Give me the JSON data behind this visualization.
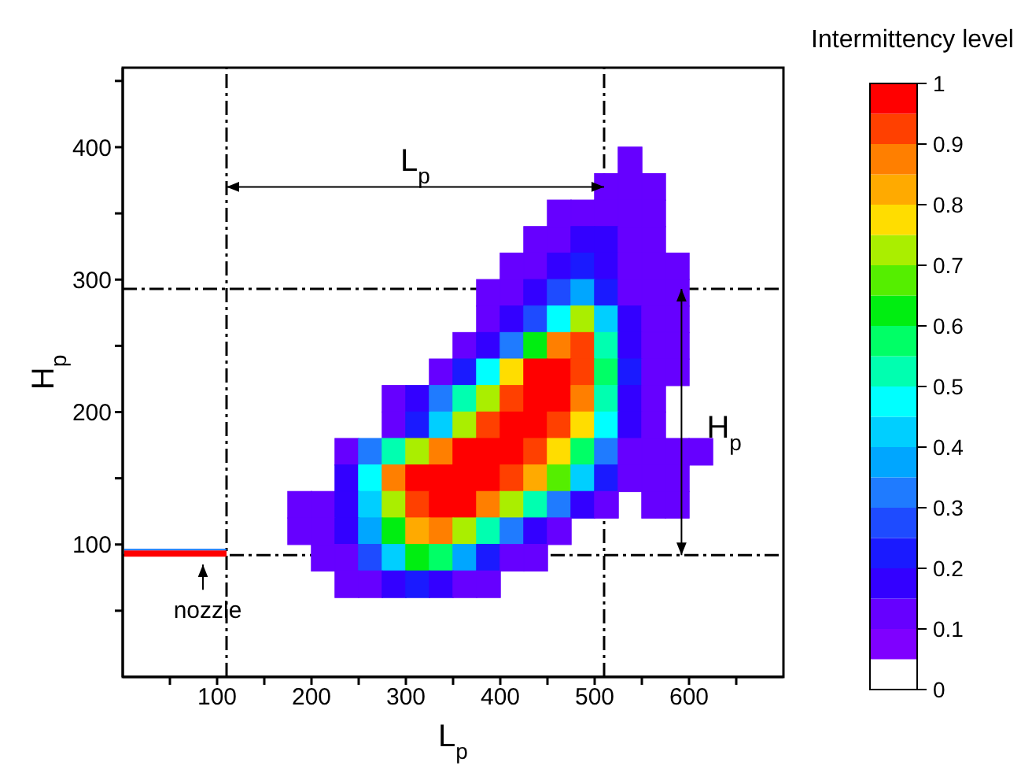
{
  "chart_data": {
    "type": "scatter",
    "marker": "square",
    "xlabel": "L$_{p}$",
    "ylabel": "H$_{p}$",
    "clabel": "Intermittency level",
    "xlim": [
      0,
      700
    ],
    "xticks": [
      {
        "value": 50,
        "label": null
      },
      100,
      {
        "value": 150,
        "label": null
      },
      200,
      {
        "value": 250,
        "label": null
      },
      300,
      {
        "value": 350,
        "label": null
      },
      400,
      {
        "value": 450,
        "label": null
      },
      500,
      {
        "value": 550,
        "label": null
      },
      600,
      {
        "value": 650,
        "label": null
      }
    ],
    "ylim": [
      0,
      460
    ],
    "yticks": [
      {
        "value": 50,
        "label": null
      },
      100,
      {
        "value": 150,
        "label": null
      },
      200,
      {
        "value": 250,
        "label": null
      },
      300,
      {
        "value": 350,
        "label": null
      },
      400,
      {
        "value": 450,
        "label": null
      }
    ],
    "clim": [
      0,
      1
    ],
    "cticks": [
      0,
      0.1,
      0.2,
      0.3,
      0.4,
      0.5,
      0.6,
      0.7,
      0.8,
      0.9,
      1
    ],
    "x": [
      537.5,
      512.5,
      537.5,
      562.5,
      462.5,
      487.5,
      512.5,
      537.5,
      562.5,
      437.5,
      462.5,
      487.5,
      512.5,
      537.5,
      562.5,
      412.5,
      437.5,
      462.5,
      487.5,
      512.5,
      537.5,
      562.5,
      587.5,
      387.5,
      412.5,
      437.5,
      462.5,
      487.5,
      512.5,
      537.5,
      562.5,
      587.5,
      387.5,
      412.5,
      437.5,
      462.5,
      487.5,
      512.5,
      537.5,
      562.5,
      587.5,
      362.5,
      387.5,
      412.5,
      437.5,
      462.5,
      487.5,
      512.5,
      537.5,
      562.5,
      587.5,
      337.5,
      362.5,
      387.5,
      412.5,
      437.5,
      462.5,
      487.5,
      512.5,
      537.5,
      562.5,
      587.5,
      287.5,
      312.5,
      337.5,
      362.5,
      387.5,
      412.5,
      437.5,
      462.5,
      487.5,
      512.5,
      537.5,
      562.5,
      287.5,
      312.5,
      337.5,
      362.5,
      387.5,
      412.5,
      437.5,
      462.5,
      487.5,
      512.5,
      537.5,
      562.5,
      237.5,
      262.5,
      287.5,
      312.5,
      337.5,
      362.5,
      387.5,
      412.5,
      437.5,
      462.5,
      487.5,
      512.5,
      537.5,
      562.5,
      587.5,
      612.5,
      237.5,
      262.5,
      287.5,
      312.5,
      337.5,
      362.5,
      387.5,
      412.5,
      437.5,
      462.5,
      487.5,
      512.5,
      537.5,
      562.5,
      587.5,
      187.5,
      212.5,
      237.5,
      262.5,
      287.5,
      312.5,
      337.5,
      362.5,
      387.5,
      412.5,
      437.5,
      462.5,
      487.5,
      512.5,
      562.5,
      587.5,
      187.5,
      212.5,
      237.5,
      262.5,
      287.5,
      312.5,
      337.5,
      362.5,
      387.5,
      412.5,
      437.5,
      462.5,
      212.5,
      237.5,
      262.5,
      287.5,
      312.5,
      337.5,
      362.5,
      387.5,
      412.5,
      437.5,
      237.5,
      262.5,
      287.5,
      312.5,
      337.5,
      362.5,
      387.5
    ],
    "values": [
      390,
      370,
      370,
      370,
      350,
      350,
      350,
      350,
      350,
      330,
      330,
      330,
      330,
      330,
      330,
      310,
      310,
      310,
      310,
      310,
      310,
      310,
      310,
      290,
      290,
      290,
      290,
      290,
      290,
      290,
      290,
      290,
      270,
      270,
      270,
      270,
      270,
      270,
      270,
      270,
      270,
      250,
      250,
      250,
      250,
      250,
      250,
      250,
      250,
      250,
      250,
      230,
      230,
      230,
      230,
      230,
      230,
      230,
      230,
      230,
      230,
      230,
      210,
      210,
      210,
      210,
      210,
      210,
      210,
      210,
      210,
      210,
      210,
      210,
      190,
      190,
      190,
      190,
      190,
      190,
      190,
      190,
      190,
      190,
      190,
      190,
      170,
      170,
      170,
      170,
      170,
      170,
      170,
      170,
      170,
      170,
      170,
      170,
      170,
      170,
      170,
      170,
      150,
      150,
      150,
      150,
      150,
      150,
      150,
      150,
      150,
      150,
      150,
      150,
      150,
      150,
      150,
      130,
      130,
      130,
      130,
      130,
      130,
      130,
      130,
      130,
      130,
      130,
      130,
      130,
      130,
      130,
      130,
      110,
      110,
      110,
      110,
      110,
      110,
      110,
      110,
      110,
      110,
      110,
      110,
      90,
      90,
      90,
      90,
      90,
      90,
      90,
      90,
      90,
      90,
      70,
      70,
      70,
      70,
      70,
      70,
      70
    ],
    "cvalues": [
      0.1,
      0.1,
      0.1,
      0.1,
      0.1,
      0.1,
      0.1,
      0.1,
      0.1,
      0.1,
      0.1,
      0.15,
      0.15,
      0.1,
      0.1,
      0.1,
      0.1,
      0.15,
      0.2,
      0.15,
      0.1,
      0.1,
      0.1,
      0.1,
      0.1,
      0.15,
      0.25,
      0.35,
      0.2,
      0.1,
      0.1,
      0.1,
      0.1,
      0.15,
      0.25,
      0.45,
      0.7,
      0.4,
      0.15,
      0.1,
      0.1,
      0.1,
      0.15,
      0.3,
      0.6,
      0.85,
      0.9,
      0.5,
      0.15,
      0.1,
      0.1,
      0.1,
      0.2,
      0.45,
      0.75,
      0.95,
      0.95,
      0.9,
      0.55,
      0.2,
      0.1,
      0.1,
      0.1,
      0.15,
      0.3,
      0.5,
      0.7,
      0.9,
      1,
      0.95,
      0.85,
      0.5,
      0.15,
      0.1,
      0.1,
      0.2,
      0.4,
      0.7,
      0.9,
      1,
      1,
      0.9,
      0.75,
      0.45,
      0.15,
      0.1,
      0.1,
      0.3,
      0.5,
      0.7,
      0.85,
      0.95,
      1,
      1,
      0.9,
      0.75,
      0.55,
      0.3,
      0.1,
      0.1,
      0.1,
      0.1,
      0.15,
      0.45,
      0.85,
      0.95,
      1,
      1,
      0.95,
      0.9,
      0.8,
      0.65,
      0.4,
      0.2,
      0.1,
      0.1,
      0.1,
      0.1,
      0.1,
      0.15,
      0.4,
      0.7,
      0.9,
      1,
      0.95,
      0.85,
      0.7,
      0.5,
      0.3,
      0.15,
      0.1,
      0.1,
      0.1,
      0.1,
      0.1,
      0.15,
      0.35,
      0.6,
      0.8,
      0.85,
      0.7,
      0.5,
      0.3,
      0.15,
      0.1,
      0.1,
      0.1,
      0.25,
      0.4,
      0.6,
      0.55,
      0.35,
      0.2,
      0.1,
      0.1,
      0.1,
      0.1,
      0.15,
      0.2,
      0.15,
      0.1,
      0.1
    ],
    "ref_lines": [
      {
        "axis": "x",
        "value": 110
      },
      {
        "axis": "x",
        "value": 510
      },
      {
        "axis": "y",
        "value": 293
      },
      {
        "axis": "y",
        "value": 92
      }
    ],
    "annotations": [
      "L$_{p}$",
      "H$_{p}$",
      "nozzle"
    ],
    "grid": false,
    "legend": false
  }
}
